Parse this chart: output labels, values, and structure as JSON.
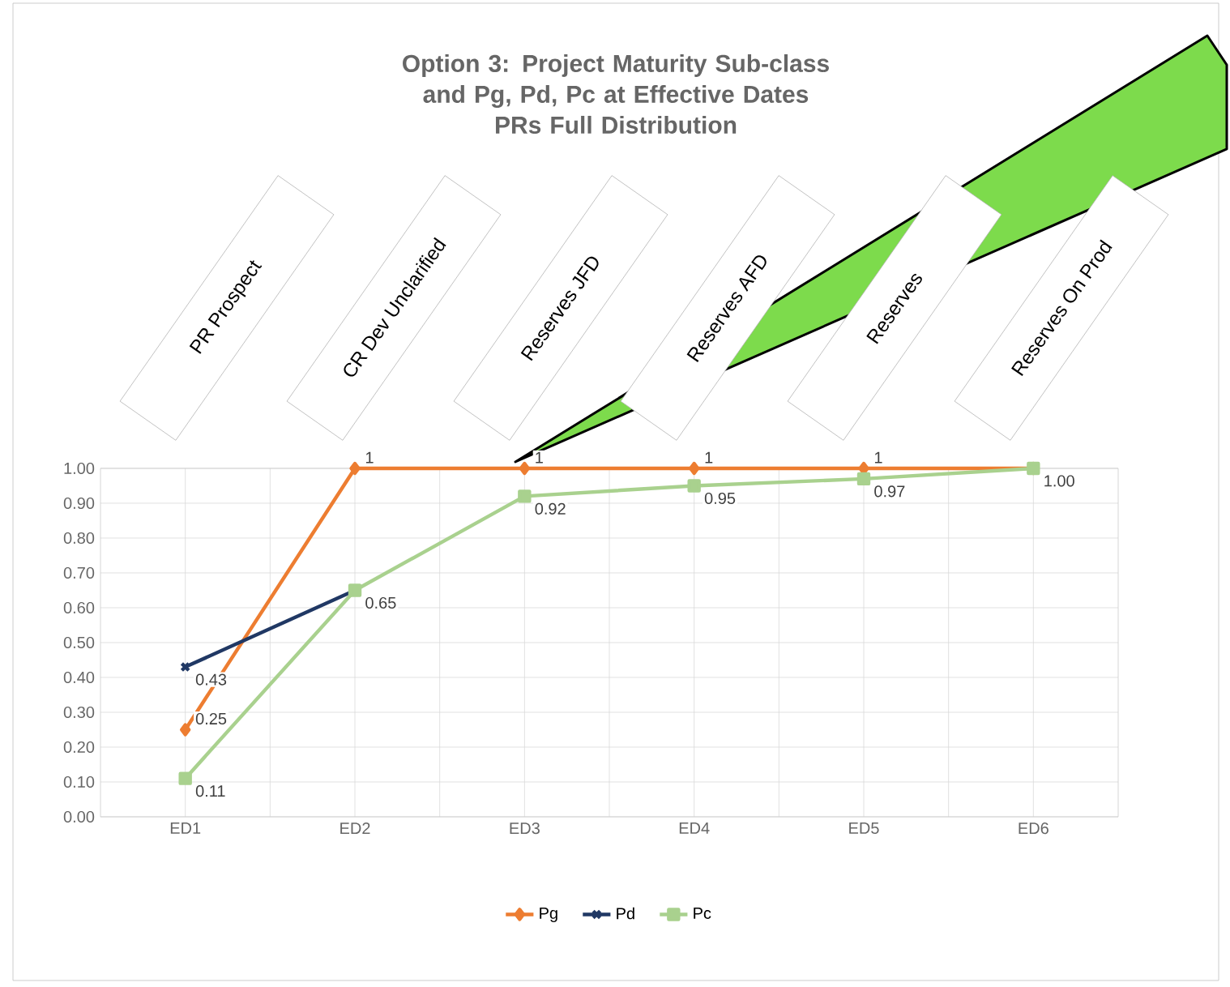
{
  "chart_data": {
    "type": "line",
    "title": "Option 3: Project Maturity Sub-class and Pg, Pd, Pc at Effective Dates",
    "subtitle": "PRs Full Distribution",
    "categories": [
      "ED1",
      "ED2",
      "ED3",
      "ED4",
      "ED5",
      "ED6"
    ],
    "series": [
      {
        "name": "Pg",
        "color": "#ed7d31",
        "marker": "diamond",
        "values": [
          0.25,
          1,
          1,
          1,
          1,
          1
        ],
        "value_labels": [
          "0.25",
          "1",
          "1",
          "1",
          "1",
          null
        ]
      },
      {
        "name": "Pd",
        "color": "#203864",
        "marker": "cross",
        "values": [
          0.43,
          0.65,
          null,
          null,
          null,
          null
        ],
        "value_labels": [
          "0.43",
          null,
          null,
          null,
          null,
          null
        ]
      },
      {
        "name": "Pc",
        "color": "#a9d18e",
        "marker": "square",
        "values": [
          0.11,
          0.65,
          0.92,
          0.95,
          0.97,
          1.0
        ],
        "value_labels": [
          "0.11",
          "0.65",
          "0.92",
          "0.95",
          "0.97",
          "1.00"
        ]
      }
    ],
    "ylim": [
      0,
      1
    ],
    "yticks": [
      {
        "value": 0,
        "label": "0.00"
      },
      {
        "value": 0.1,
        "label": "0.10"
      },
      {
        "value": 0.2,
        "label": "0.20"
      },
      {
        "value": 0.3,
        "label": "0.30"
      },
      {
        "value": 0.4,
        "label": "0.40"
      },
      {
        "value": 0.5,
        "label": "0.50"
      },
      {
        "value": 0.6,
        "label": "0.60"
      },
      {
        "value": 0.7,
        "label": "0.70"
      },
      {
        "value": 0.8,
        "label": "0.80"
      },
      {
        "value": 0.9,
        "label": "0.90"
      },
      {
        "value": 1,
        "label": "1.00"
      }
    ],
    "grid": true,
    "legend": "bottom",
    "annotations": [
      "PR Prospect",
      "CR Dev Unclarified",
      "Reserves JFD",
      "Reserves AFD",
      "Reserves",
      "Reserves On Prod"
    ]
  }
}
